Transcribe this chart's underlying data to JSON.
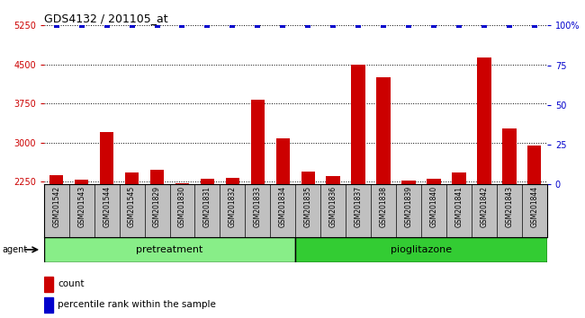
{
  "title": "GDS4132 / 201105_at",
  "samples": [
    "GSM201542",
    "GSM201543",
    "GSM201544",
    "GSM201545",
    "GSM201829",
    "GSM201830",
    "GSM201831",
    "GSM201832",
    "GSM201833",
    "GSM201834",
    "GSM201835",
    "GSM201836",
    "GSM201837",
    "GSM201838",
    "GSM201839",
    "GSM201840",
    "GSM201841",
    "GSM201842",
    "GSM201843",
    "GSM201844"
  ],
  "counts": [
    2380,
    2295,
    3200,
    2430,
    2475,
    2225,
    2305,
    2320,
    3820,
    3080,
    2455,
    2355,
    4490,
    4260,
    2275,
    2305,
    2430,
    4640,
    3270,
    2950
  ],
  "groups": [
    {
      "label": "pretreatment",
      "start": 0,
      "end": 9,
      "color": "#88EE88"
    },
    {
      "label": "pioglitazone",
      "start": 10,
      "end": 19,
      "color": "#33CC33"
    }
  ],
  "bar_color": "#CC0000",
  "dot_color": "#0000CC",
  "ylim_left": [
    2200,
    5250
  ],
  "yticks_left": [
    2250,
    3000,
    3750,
    4500,
    5250
  ],
  "ylim_right": [
    0,
    100
  ],
  "yticks_right": [
    0,
    25,
    50,
    75,
    100
  ],
  "sample_box_color": "#C0C0C0",
  "plot_bg": "#FFFFFF",
  "left_tick_color": "#CC0000",
  "right_tick_color": "#0000CC",
  "grid_color": "#000000",
  "legend_count_label": "count",
  "legend_pct_label": "percentile rank within the sample",
  "fig_bg": "#FFFFFF"
}
